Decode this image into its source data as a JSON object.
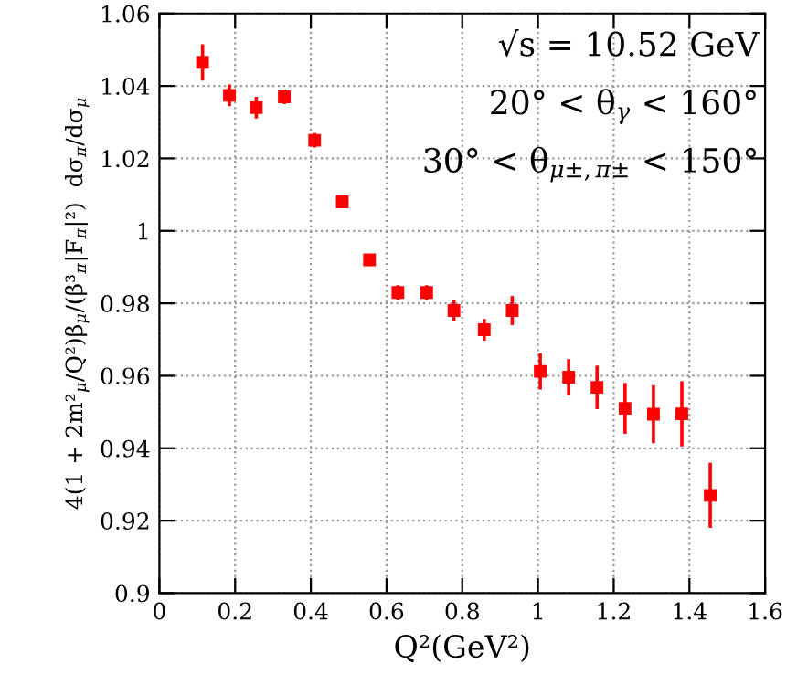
{
  "chart_data": {
    "type": "scatter",
    "xlabel": "Q²(GeV²)",
    "ylabel": "4(1 + 2m²$_{μ}$/Q²)β$_{μ}$/(β³$_{π}$|F$_{π}$|²)  dσ$_{π}$/dσ$_{μ}$",
    "annotations": [
      "√s = 10.52 GeV",
      "20° < θ$_{γ}$ < 160°",
      "30° < θ$_{μ±,π±}$ < 150°"
    ],
    "series": [
      {
        "color": "#ff0000",
        "x": [
          0.114,
          0.185,
          0.256,
          0.33,
          0.41,
          0.483,
          0.555,
          0.63,
          0.706,
          0.778,
          0.858,
          0.932,
          1.006,
          1.081,
          1.156,
          1.23,
          1.305,
          1.38,
          1.455
        ],
        "values": [
          1.0465,
          1.0374,
          1.034,
          1.037,
          1.025,
          1.008,
          0.992,
          0.983,
          0.983,
          0.978,
          0.9727,
          0.978,
          0.9612,
          0.9596,
          0.9568,
          0.951,
          0.9494,
          0.9495,
          0.927
        ],
        "errors": [
          0.005,
          0.003,
          0.003,
          0.002,
          0.002,
          0.001,
          0.001,
          0.002,
          0.002,
          0.003,
          0.003,
          0.004,
          0.005,
          0.005,
          0.006,
          0.007,
          0.008,
          0.009,
          0.009
        ]
      }
    ],
    "marker": "square",
    "grid": true,
    "xlim": [
      0,
      1.6
    ],
    "xticks": [
      0,
      0.2,
      0.4,
      0.6,
      0.8,
      1,
      1.2,
      1.4,
      1.6
    ],
    "ylim": [
      0.9,
      1.06
    ],
    "yticks": [
      0.9,
      0.92,
      0.94,
      0.96,
      0.98,
      1,
      1.02,
      1.04,
      1.06
    ]
  }
}
